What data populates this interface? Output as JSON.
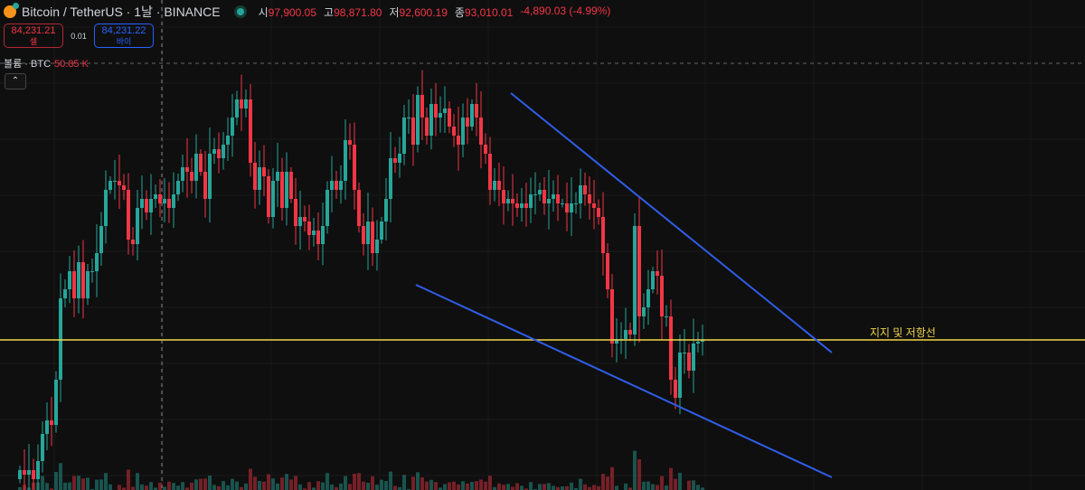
{
  "header": {
    "symbol": "Bitcoin / TetherUS · 1날 · BINANCE",
    "open_label": "시",
    "open": "97,900.05",
    "high_label": "고",
    "high": "98,871.80",
    "low_label": "저",
    "low": "92,600.19",
    "close_label": "종",
    "close": "93,010.01",
    "change": "-4,890.03 (-4.99%)"
  },
  "trade": {
    "sell_price": "84,231.21",
    "sell_label": "셀",
    "spread": "0.01",
    "buy_price": "84,231.22",
    "buy_label": "바이"
  },
  "volume": {
    "label": "볼륨 · BTC",
    "value": "50.85 K",
    "collapse_icon": "chevron-up-icon"
  },
  "colors": {
    "up": "#26a69a",
    "down": "#f23645",
    "trendline": "#2f5ee8",
    "support": "#f0d44a",
    "bg": "#0f0f0f"
  },
  "drawings": {
    "support_label": "지지 및 저항선",
    "support_price": 34.8,
    "upper_trendline": [
      [
        108.6,
        89.4
      ],
      [
        179.6,
        32
      ]
    ],
    "lower_trendline": [
      [
        87.6,
        47
      ],
      [
        179.6,
        4.4
      ]
    ]
  },
  "chart_data": {
    "type": "candlestick",
    "price_units": "relative (no axis shown)",
    "first_open": 4,
    "closes": [
      6,
      5,
      6,
      4,
      8,
      14,
      17,
      16,
      26,
      44,
      46,
      50,
      44,
      52,
      44,
      50,
      50,
      54,
      60,
      68,
      70,
      70,
      69,
      68,
      57,
      56,
      64,
      66,
      63,
      66,
      67,
      65,
      66,
      64,
      67,
      70,
      73,
      72,
      70,
      76,
      72,
      66,
      76,
      77,
      75,
      78,
      80,
      84,
      88,
      86,
      88,
      74,
      68,
      73,
      71,
      62,
      70,
      72,
      64,
      72,
      66,
      60,
      62,
      61,
      58,
      59,
      56,
      60,
      68,
      70,
      68,
      70,
      79,
      78,
      68,
      60,
      56,
      61,
      54,
      57,
      61,
      66,
      75,
      74,
      76,
      84,
      84,
      78,
      89,
      84,
      80,
      87,
      84,
      85,
      86,
      82,
      80,
      78,
      84,
      82,
      87,
      84,
      78,
      76,
      68,
      70,
      68,
      65,
      66,
      65,
      64,
      65,
      64,
      67,
      67,
      68,
      65,
      66,
      67,
      65,
      65,
      63,
      65,
      65,
      69,
      67,
      65,
      64,
      62,
      54,
      46,
      34,
      35,
      35,
      37,
      36,
      60,
      40,
      42,
      46,
      50,
      49,
      40,
      40,
      26,
      22,
      32,
      32,
      28,
      34,
      34.4,
      34.8
    ]
  }
}
